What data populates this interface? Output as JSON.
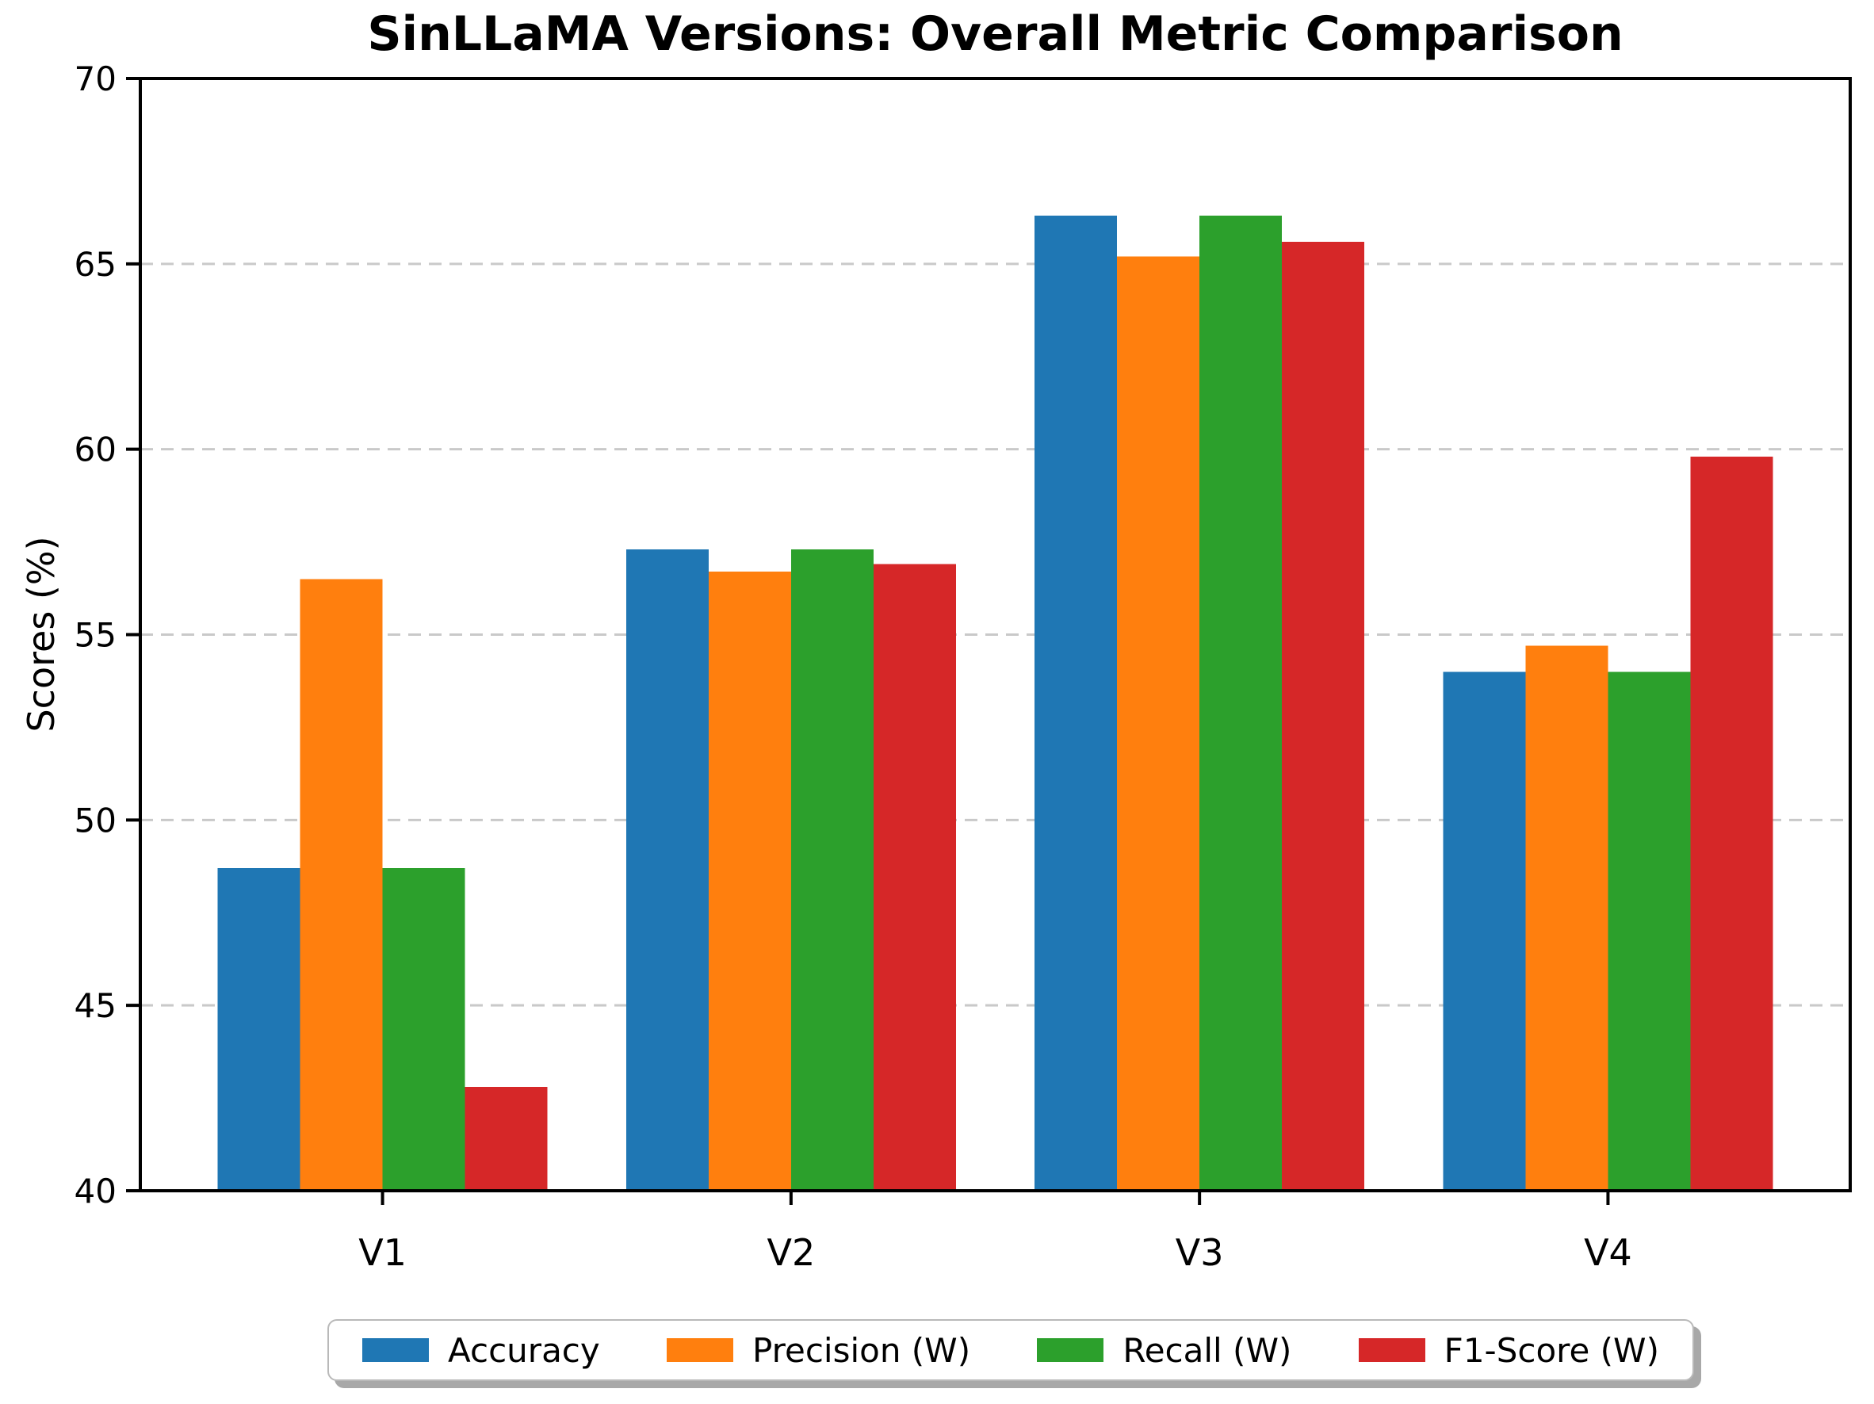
{
  "title": "SinLLaMA Versions: Overall Metric Comparison",
  "chart_data": {
    "type": "bar",
    "title": "SinLLaMA Versions: Overall Metric Comparison",
    "xlabel": "",
    "ylabel": "Scores (%)",
    "categories": [
      "V1",
      "V2",
      "V3",
      "V4"
    ],
    "series": [
      {
        "name": "Accuracy",
        "color": "#1f77b4",
        "values": [
          48.7,
          57.3,
          66.3,
          54.0
        ]
      },
      {
        "name": "Precision (W)",
        "color": "#ff7f0e",
        "values": [
          56.5,
          56.7,
          65.2,
          54.7
        ]
      },
      {
        "name": "Recall (W)",
        "color": "#2ca02c",
        "values": [
          48.7,
          57.3,
          66.3,
          54.0
        ]
      },
      {
        "name": "F1-Score (W)",
        "color": "#d62728",
        "values": [
          42.8,
          56.9,
          65.6,
          59.8
        ]
      }
    ],
    "ylim": [
      40,
      70
    ],
    "yticks": [
      40,
      45,
      50,
      55,
      60,
      65,
      70
    ],
    "grid": "horizontal-dashed",
    "grid_color": "#c9c9c9",
    "spine_color": "#000000",
    "legend_position": "bottom-center"
  }
}
